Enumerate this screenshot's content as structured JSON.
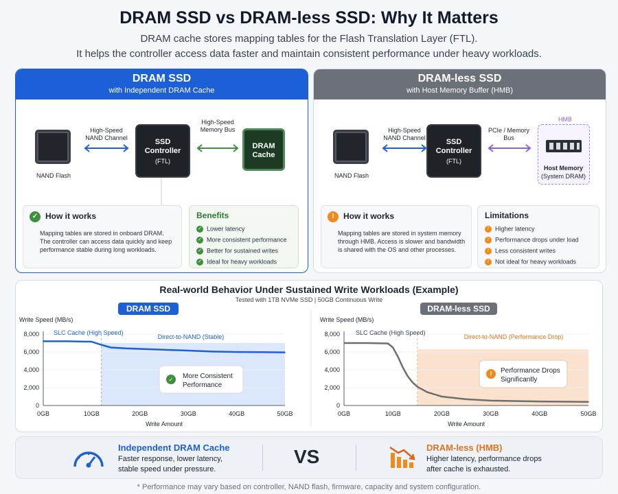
{
  "header": {
    "title": "DRAM SSD vs DRAM-less SSD: Why It Matters",
    "subtitle_1": "DRAM cache stores mapping tables for the Flash Translation Layer (FTL).",
    "subtitle_2": "It helps the controller access data faster and maintain consistent performance under heavy workloads."
  },
  "left_panel": {
    "title": "DRAM SSD",
    "subtitle": "with Independent DRAM Cache",
    "nand_label": "NAND Flash",
    "link1_label_1": "High-Speed",
    "link1_label_2": "NAND Channel",
    "controller_1": "SSD",
    "controller_2": "Controller",
    "controller_3": "(FTL)",
    "link2_label_1": "High-Speed",
    "link2_label_2": "Memory Bus",
    "dram_1": "DRAM",
    "dram_2": "Cache",
    "how_title": "How it works",
    "how_1": "Mapping tables are stored in onboard DRAM.",
    "how_2": "The controller can access data quickly and keep",
    "how_3": "performance stable during long workloads.",
    "benefits_title": "Benefits",
    "benefits": [
      "Lower latency",
      "More consistent performance",
      "Better for sustained writes",
      "Ideal for heavy workloads"
    ]
  },
  "right_panel": {
    "title": "DRAM-less SSD",
    "subtitle": "with Host Memory Buffer (HMB)",
    "nand_label": "NAND Flash",
    "link1_label_1": "High-Speed",
    "link1_label_2": "NAND Channel",
    "controller_1": "SSD",
    "controller_2": "Controller",
    "controller_3": "(FTL)",
    "link2_label_1": "PCIe / Memory",
    "link2_label_2": "Bus",
    "hmb_tag": "HMB",
    "host_1": "Host Memory",
    "host_2": "(System DRAM)",
    "how_title": "How it works",
    "how_1": "Mapping tables are stored in system memory",
    "how_2": "through HMB. Access is slower and bandwidth",
    "how_3": "is shared with the OS and other processes.",
    "limitations_title": "Limitations",
    "limitations": [
      "Higher latency",
      "Performance drops under load",
      "Less consistent writes",
      "Not ideal for heavy workloads"
    ]
  },
  "chart_section": {
    "title": "Real-world Behavior Under Sustained Write Workloads (Example)",
    "subtitle": "Tested with 1TB NVMe SSD | 50GB Continuous Write"
  },
  "chart_data": [
    {
      "type": "line",
      "title": "DRAM SSD",
      "ylabel": "Write Speed (MB/s)",
      "xlabel": "Write Amount",
      "x_ticks": [
        "0GB",
        "10GB",
        "20GB",
        "30GB",
        "40GB",
        "50GB"
      ],
      "y_ticks": [
        "0",
        "2,000",
        "4,000",
        "6,000",
        "8,000"
      ],
      "xlim": [
        0,
        50
      ],
      "ylim": [
        0,
        8000
      ],
      "series": [
        {
          "x": [
            0,
            5,
            10,
            12,
            14,
            17,
            20,
            25,
            30,
            35,
            40,
            45,
            50
          ],
          "y": [
            7200,
            7200,
            7150,
            6800,
            6500,
            6400,
            6350,
            6250,
            6150,
            6050,
            6000,
            5980,
            5950
          ]
        }
      ],
      "annotations": {
        "phase1": "SLC Cache (High Speed)",
        "phase2": "Direct-to-NAND (Stable)",
        "callout": [
          "More Consistent",
          "Performance"
        ]
      },
      "color": "#1d5fd6"
    },
    {
      "type": "line",
      "title": "DRAM-less SSD",
      "ylabel": "Write Speed (MB/s)",
      "xlabel": "Write Amount",
      "x_ticks": [
        "0GB",
        "10GB",
        "20GB",
        "30GB",
        "40GB",
        "50GB"
      ],
      "y_ticks": [
        "0",
        "2,000",
        "4,000",
        "6,000",
        "8,000"
      ],
      "xlim": [
        0,
        50
      ],
      "ylim": [
        0,
        8000
      ],
      "series": [
        {
          "x": [
            0,
            5,
            9,
            10,
            11,
            12,
            13,
            14,
            15,
            17,
            20,
            25,
            30,
            40,
            50
          ],
          "y": [
            7000,
            7000,
            6950,
            6500,
            5500,
            4300,
            3300,
            2600,
            2100,
            1500,
            1000,
            700,
            550,
            450,
            400
          ]
        }
      ],
      "annotations": {
        "phase1": "SLC Cache (High Speed)",
        "phase2": "Direct-to-NAND (Performance Drop)",
        "callout": [
          "Performance Drops",
          "Significantly"
        ]
      },
      "color": "#6e6e6e"
    }
  ],
  "bottom": {
    "left_title": "Independent DRAM Cache",
    "left_desc_1": "Faster response, lower latency,",
    "left_desc_2": "stable speed under pressure.",
    "vs": "VS",
    "right_title": "DRAM-less (HMB)",
    "right_desc_1": "Higher latency, performance drops",
    "right_desc_2": "after cache is exhausted."
  },
  "footnote": "* Performance may vary based on controller, NAND flash, firmware, capacity and system configuration.",
  "colors": {
    "dram_blue": "#1d5fd6",
    "hmb_gray": "#6c7079",
    "benefit_green": "#3f8f3f",
    "limit_orange": "#f08a1c",
    "hmb_purple": "#a883e0"
  }
}
